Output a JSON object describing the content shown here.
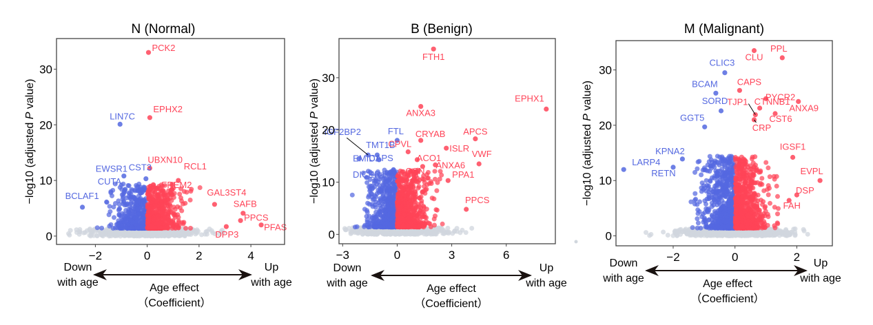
{
  "chart_data": [
    {
      "type": "scatter",
      "title": "N (Normal)",
      "xlabel": "Age effect (Coefficient)",
      "ylabel": "-log10 (adjusted P value)",
      "xlim": [
        -3.5,
        5.3
      ],
      "ylim": [
        -1.5,
        35.5
      ],
      "xticks": [
        -2,
        0,
        2,
        4
      ],
      "yticks": [
        0,
        10,
        20,
        30
      ],
      "down_label": [
        "Down",
        "with age"
      ],
      "up_label": [
        "Up",
        "with age"
      ],
      "colors": {
        "down": "#5468E0",
        "up": "#FF4458",
        "ns": "#D0D6DD"
      },
      "labeled_points": [
        {
          "gene": "PCK2",
          "x": 0.05,
          "y": 33.0,
          "group": "up"
        },
        {
          "gene": "EPHX2",
          "x": 0.1,
          "y": 21.3,
          "group": "up"
        },
        {
          "gene": "LIN7C",
          "x": -1.05,
          "y": 20.1,
          "group": "down"
        },
        {
          "gene": "UBXN10",
          "x": 0.1,
          "y": 12.2,
          "group": "up"
        },
        {
          "gene": "EWSR1",
          "x": -0.9,
          "y": 10.8,
          "group": "down"
        },
        {
          "gene": "RCL1",
          "x": 1.2,
          "y": 10.0,
          "group": "up"
        },
        {
          "gene": "CUTA",
          "x": -0.85,
          "y": 8.4,
          "group": "down"
        },
        {
          "gene": "CST3",
          "x": -0.05,
          "y": 10.3,
          "group": "down"
        },
        {
          "gene": "FREM2",
          "x": 0.95,
          "y": 8.4,
          "group": "up"
        },
        {
          "gene": "BCLAF1",
          "x": -2.5,
          "y": 5.2,
          "group": "down"
        },
        {
          "gene": "GAL3ST4",
          "x": 2.6,
          "y": 5.7,
          "group": "up"
        },
        {
          "gene": "SAFB",
          "x": 3.7,
          "y": 4.1,
          "group": "up"
        },
        {
          "gene": "PPCS",
          "x": 3.6,
          "y": 2.8,
          "group": "up"
        },
        {
          "gene": "DPP3",
          "x": 3.05,
          "y": 1.7,
          "group": "up"
        },
        {
          "gene": "PFAS",
          "x": 4.4,
          "y": 2.0,
          "group": "up"
        }
      ],
      "background_counts": {
        "down": 420,
        "up": 520,
        "ns": 700
      }
    },
    {
      "type": "scatter",
      "title": "B (Benign)",
      "xlabel": "Age effect (Coefficient)",
      "ylabel": "-log10 (adjusted P value)",
      "xlim": [
        -3.2,
        8.7
      ],
      "ylim": [
        -1.8,
        37.5
      ],
      "xticks": [
        -3,
        0,
        3,
        6
      ],
      "yticks": [
        0,
        10,
        20,
        30
      ],
      "down_label": [
        "Down",
        "with age"
      ],
      "up_label": [
        "Up",
        "with age"
      ],
      "colors": {
        "down": "#5468E0",
        "up": "#FF4458",
        "ns": "#D0D6DD"
      },
      "labeled_points": [
        {
          "gene": "FTH1",
          "x": 2.0,
          "y": 35.5,
          "group": "up"
        },
        {
          "gene": "EPHX1",
          "x": 8.2,
          "y": 24.0,
          "group": "up"
        },
        {
          "gene": "ANXA3",
          "x": 1.3,
          "y": 24.5,
          "group": "up"
        },
        {
          "gene": "FTL",
          "x": 0.0,
          "y": 18.0,
          "group": "down"
        },
        {
          "gene": "CRYAB",
          "x": 1.3,
          "y": 18.0,
          "group": "up"
        },
        {
          "gene": "APCS",
          "x": 4.3,
          "y": 18.3,
          "group": "up"
        },
        {
          "gene": "IGF2BP2",
          "x": -1.6,
          "y": 15.2,
          "group": "down"
        },
        {
          "gene": "TMT1B",
          "x": -1.1,
          "y": 15.2,
          "group": "down"
        },
        {
          "gene": "CPVL",
          "x": 0.6,
          "y": 15.8,
          "group": "up"
        },
        {
          "gene": "ACO1",
          "x": 1.1,
          "y": 14.3,
          "group": "up"
        },
        {
          "gene": "ISLR",
          "x": 2.7,
          "y": 16.5,
          "group": "up"
        },
        {
          "gene": "VWF",
          "x": 4.5,
          "y": 13.5,
          "group": "up"
        },
        {
          "gene": "EMID1",
          "x": -2.1,
          "y": 14.5,
          "group": "down"
        },
        {
          "gene": "CAPS",
          "x": -1.0,
          "y": 14.3,
          "group": "down"
        },
        {
          "gene": "ANXA6",
          "x": 2.1,
          "y": 13.3,
          "group": "up"
        },
        {
          "gene": "GSN",
          "x": 1.4,
          "y": 13.0,
          "group": "up"
        },
        {
          "gene": "DICER1",
          "x": -0.4,
          "y": 11.8,
          "group": "down"
        },
        {
          "gene": "PPA1",
          "x": 2.8,
          "y": 10.3,
          "group": "up"
        },
        {
          "gene": "PPCS",
          "x": 3.8,
          "y": 4.8,
          "group": "up"
        }
      ],
      "background_counts": {
        "down": 520,
        "up": 620,
        "ns": 500
      }
    },
    {
      "type": "scatter",
      "title": "M (Malignant)",
      "xlabel": "Age effect (Coefficient)",
      "ylabel": "-log10 (adjusted P value)",
      "xlim": [
        -3.85,
        3.15
      ],
      "ylim": [
        -1.8,
        35.3
      ],
      "xticks": [
        -2,
        0,
        2
      ],
      "yticks": [
        0,
        10,
        20,
        30
      ],
      "down_label": [
        "Down",
        "with age"
      ],
      "up_label": [
        "Up",
        "with age"
      ],
      "colors": {
        "down": "#5468E0",
        "up": "#FF4458",
        "ns": "#D0D6DD"
      },
      "labeled_points": [
        {
          "gene": "CLU",
          "x": 0.62,
          "y": 33.5,
          "group": "up"
        },
        {
          "gene": "PPL",
          "x": 1.53,
          "y": 32.2,
          "group": "up"
        },
        {
          "gene": "CLIC3",
          "x": -0.33,
          "y": 29.5,
          "group": "down"
        },
        {
          "gene": "CAPS",
          "x": 0.15,
          "y": 26.3,
          "group": "up"
        },
        {
          "gene": "BCAM",
          "x": -0.62,
          "y": 25.8,
          "group": "down"
        },
        {
          "gene": "PYCR2",
          "x": 1.0,
          "y": 24.8,
          "group": "up"
        },
        {
          "gene": "ANXA9",
          "x": 2.05,
          "y": 24.3,
          "group": "up"
        },
        {
          "gene": "CTNNB1",
          "x": 0.8,
          "y": 23.1,
          "group": "up"
        },
        {
          "gene": "SORD",
          "x": -0.45,
          "y": 22.6,
          "group": "down"
        },
        {
          "gene": "TJP1",
          "x": 0.66,
          "y": 21.9,
          "group": "up"
        },
        {
          "gene": "CST6",
          "x": 1.3,
          "y": 22.1,
          "group": "up"
        },
        {
          "gene": "CRP",
          "x": 0.62,
          "y": 21.0,
          "group": "up"
        },
        {
          "gene": "GGT5",
          "x": -0.98,
          "y": 19.7,
          "group": "down"
        },
        {
          "gene": "IGSF1",
          "x": 1.87,
          "y": 14.2,
          "group": "up"
        },
        {
          "gene": "KPNA2",
          "x": -1.7,
          "y": 13.9,
          "group": "down"
        },
        {
          "gene": "LARP4",
          "x": -3.6,
          "y": 12.0,
          "group": "down"
        },
        {
          "gene": "RETN",
          "x": -2.0,
          "y": 12.4,
          "group": "down"
        },
        {
          "gene": "EVPL",
          "x": 2.75,
          "y": 10.0,
          "group": "up"
        },
        {
          "gene": "DSP",
          "x": 2.0,
          "y": 7.4,
          "group": "up"
        },
        {
          "gene": "FAH",
          "x": 1.75,
          "y": 6.4,
          "group": "up"
        }
      ],
      "background_counts": {
        "down": 700,
        "up": 700,
        "ns": 700
      }
    }
  ]
}
